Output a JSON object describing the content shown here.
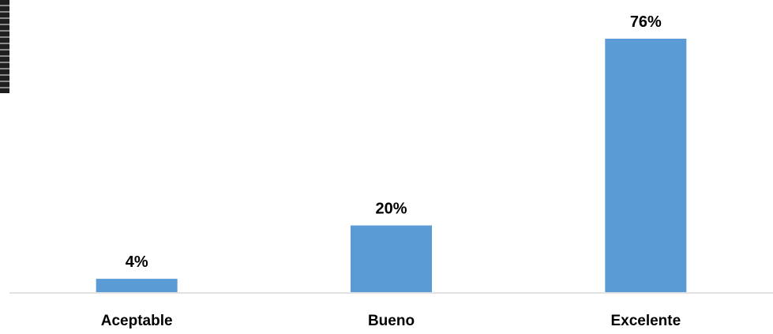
{
  "chart_data": {
    "type": "bar",
    "categories": [
      "Aceptable",
      "Bueno",
      "Excelente"
    ],
    "values": [
      4,
      20,
      76
    ],
    "data_labels": [
      "4%",
      "20%",
      "76%"
    ],
    "unit": "%",
    "title": "",
    "xlabel": "",
    "ylabel": "",
    "ylim": [
      0,
      76
    ],
    "grid": false,
    "legend": "none",
    "bar_color": "#5B9BD5",
    "axis_color": "#D9D9D9",
    "label_color": "#000000"
  }
}
